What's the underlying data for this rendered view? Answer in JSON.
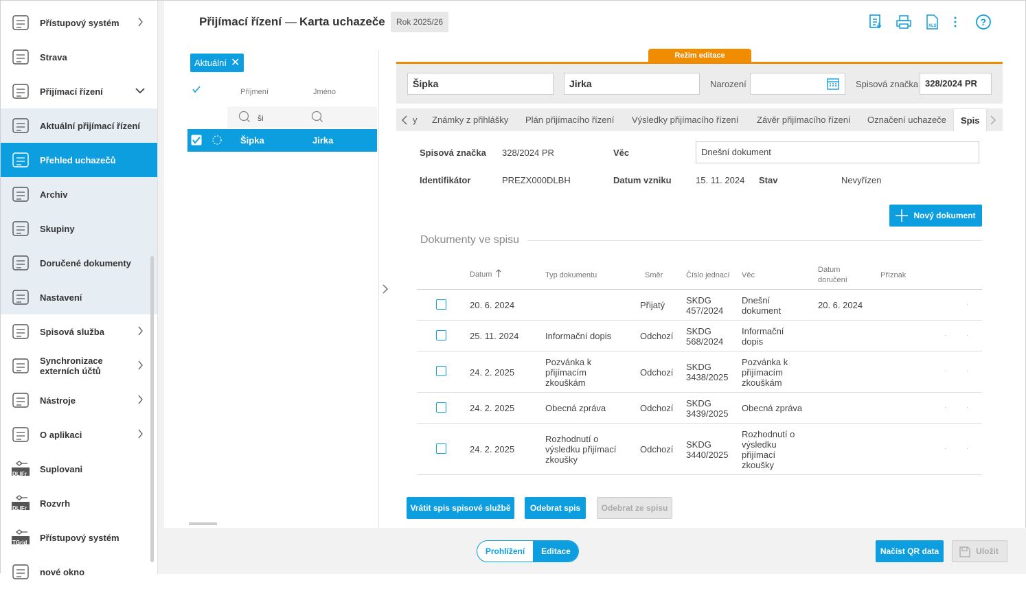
{
  "sidebar": {
    "items": [
      {
        "label": "Přístupový systém",
        "icon": "fingerprint-icon",
        "chevron": "right"
      },
      {
        "label": "Strava",
        "icon": "plate-icon",
        "chevron": ""
      },
      {
        "label": "Přijímací řízení",
        "icon": "admission-icon",
        "chevron": "down"
      },
      {
        "label": "Aktuální přijímací řízení",
        "icon": "refresh-doc-icon",
        "chevron": ""
      },
      {
        "label": "Přehled uchazečů",
        "icon": "applicants-icon",
        "chevron": ""
      },
      {
        "label": "Archiv",
        "icon": "archive-icon",
        "chevron": ""
      },
      {
        "label": "Skupiny",
        "icon": "groups-icon",
        "chevron": ""
      },
      {
        "label": "Doručené dokumenty",
        "icon": "inbox-icon",
        "chevron": ""
      },
      {
        "label": "Nastavení",
        "icon": "settings-icon",
        "chevron": ""
      },
      {
        "label": "Spisová služba",
        "icon": "filing-icon",
        "chevron": "right"
      },
      {
        "label_line1": "Synchronizace",
        "label_line2": "externích účtů",
        "icon": "sync-user-icon",
        "chevron": "right"
      },
      {
        "label": "Nástroje",
        "icon": "wrench-icon",
        "chevron": "right"
      },
      {
        "label": "O aplikaci",
        "icon": "help-icon",
        "chevron": "right"
      },
      {
        "label": "Suplovani",
        "icon": "dlifr-icon",
        "badge": "DLIFr",
        "chevron": ""
      },
      {
        "label": "Rozvrh",
        "icon": "dlifr-icon",
        "badge": "DLIFr",
        "chevron": ""
      },
      {
        "label": "Přístupový systém",
        "icon": "tgrid-icon",
        "badge": "TGrid",
        "chevron": ""
      },
      {
        "label": "nové okno",
        "icon": "window-icon",
        "chevron": ""
      }
    ]
  },
  "header": {
    "title": "Přijímací řízení",
    "separator": "—",
    "subtitle": "Karta uchazeče",
    "year": "Rok 2025/26"
  },
  "list": {
    "filter_chip": "Aktuální",
    "col_surname": "Příjmení",
    "col_name": "Jméno",
    "search_surname": "ši",
    "row": {
      "surname": "Šipka",
      "name": "Jirka"
    }
  },
  "form": {
    "mode_label": "Režim editace",
    "surname": "Šipka",
    "name": "Jirka",
    "birth_label": "Narození",
    "birth_value": "",
    "file_mark_label": "Spisová značka",
    "file_mark_value": "328/2024 PR"
  },
  "tabs": [
    "y",
    "Známky z přihlášky",
    "Plán přijímacího řízení",
    "Výsledky přijímacího řízení",
    "Závěr přijímacího řízení",
    "Označení uchazeče",
    "Spis"
  ],
  "spis": {
    "label_mark": "Spisová značka",
    "value_mark": "328/2024 PR",
    "label_subject": "Věc",
    "value_subject": "Dnešní dokument",
    "label_id": "Identifikátor",
    "value_id": "PREZX000DLBH",
    "label_created": "Datum vzniku",
    "value_created": "15. 11. 2024",
    "label_state": "Stav",
    "value_state": "Nevyřízen",
    "new_doc_button": "Nový dokument",
    "section_title": "Dokumenty ve spisu"
  },
  "table": {
    "headers": {
      "date": "Datum",
      "type": "Typ dokumentu",
      "direction": "Směr",
      "ref": "Číslo jednací",
      "subject": "Věc",
      "delivered_1": "Datum",
      "delivered_2": "doručení",
      "flag": "Příznak"
    },
    "rows": [
      {
        "date": "20. 6. 2024",
        "type": [],
        "direction": "Přijatý",
        "ref": [
          "SKDG",
          "457/2024"
        ],
        "subject": [
          "Dnešní",
          "dokument"
        ],
        "delivered": "20. 6. 2024"
      },
      {
        "date": "25. 11. 2024",
        "type": [
          "Informační dopis"
        ],
        "direction": "Odchozí",
        "ref": [
          "SKDG",
          "568/2024"
        ],
        "subject": [
          "Informační",
          "dopis"
        ],
        "delivered": ""
      },
      {
        "date": "24. 2. 2025",
        "type": [
          "Pozvánka k",
          "přijímacím",
          "zkouškám"
        ],
        "direction": "Odchozí",
        "ref": [
          "SKDG",
          "3438/2025"
        ],
        "subject": [
          "Pozvánka k",
          "přijímacím",
          "zkouškám"
        ],
        "delivered": ""
      },
      {
        "date": "24. 2. 2025",
        "type": [
          "Obecná zpráva"
        ],
        "direction": "Odchozí",
        "ref": [
          "SKDG",
          "3439/2025"
        ],
        "subject": [
          "Obecná zpráva"
        ],
        "delivered": ""
      },
      {
        "date": "24. 2. 2025",
        "type": [
          "Rozhodnutí o",
          "výsledku přijímací",
          "zkoušky"
        ],
        "direction": "Odchozí",
        "ref": [
          "SKDG",
          "3440/2025"
        ],
        "subject": [
          "Rozhodnutí o",
          "výsledku",
          "přijímací",
          "zkoušky"
        ],
        "delivered": ""
      }
    ]
  },
  "actions": {
    "return_button": "Vrátit spis spisové službě",
    "take_button": "Odebrat spis",
    "remove_button": "Odebrat ze spisu"
  },
  "footer": {
    "view_mode": "Prohlížení",
    "edit_mode": "Editace",
    "qr_button": "Načíst QR data",
    "save_button": "Uložit"
  },
  "toolbar_icons": [
    "pdf-export-icon",
    "print-icon",
    "xls-export-icon",
    "more-icon",
    "help-icon"
  ],
  "colors": {
    "accent": "#0d9ee0",
    "edit_mode": "#f08c00"
  }
}
